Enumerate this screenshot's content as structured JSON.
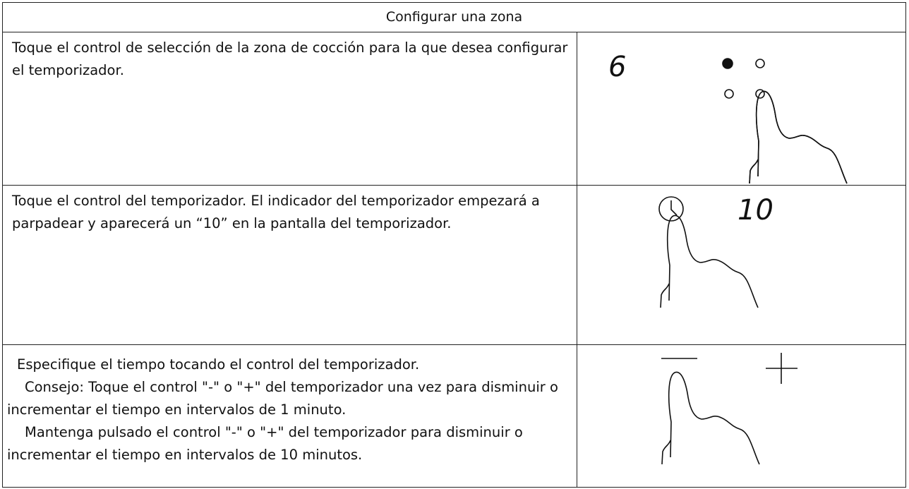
{
  "table": {
    "header": "Configurar una zona",
    "rows": [
      {
        "paragraphs": [
          "Toque el control de selección de la zona de cocción para la que desea configurar el temporizador."
        ],
        "display": "6"
      },
      {
        "paragraphs": [
          "Toque el control del temporizador. El indicador del temporizador empezará a parpadear y aparecerá un “10” en la pantalla del temporizador."
        ],
        "display": "10"
      },
      {
        "paragraphs": [
          "Especifique el tiempo tocando el control del temporizador.",
          "Consejo: Toque el control \"-\" o \"+\" del temporizador una vez para disminuir o incrementar el tiempo en intervalos de 1 minuto.",
          "Mantenga pulsado el control \"-\" o \"+\" del temporizador para disminuir o incrementar el tiempo en intervalos de 10 minutos."
        ]
      }
    ]
  }
}
